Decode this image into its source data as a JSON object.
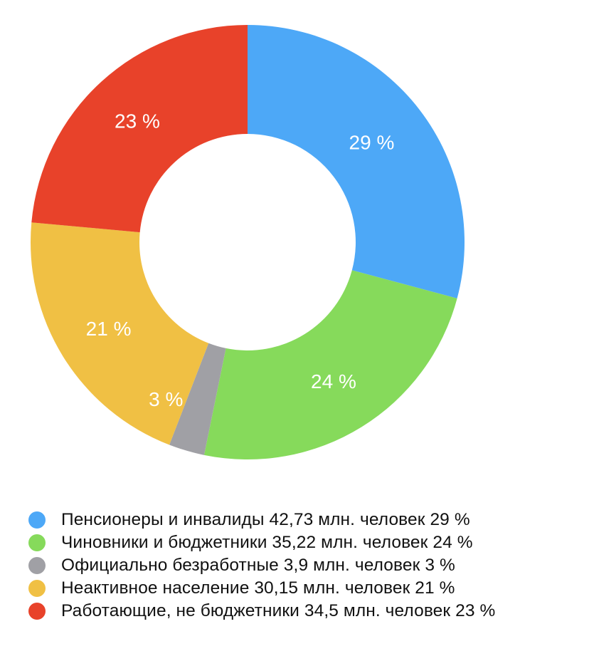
{
  "chart_data": {
    "type": "pie",
    "donut": true,
    "title": "",
    "start_angle_deg": 0,
    "direction": "clockwise",
    "slices": [
      {
        "label": "Пенсионеры и инвалиды",
        "value": 42.73,
        "percent_label": "29 %",
        "legend": "Пенсионеры и инвалиды 42,73 млн. человек 29 %",
        "color": "#4DA8F7"
      },
      {
        "label": "Чиновники и бюджетники",
        "value": 35.22,
        "percent_label": "24 %",
        "legend": "Чиновники и бюджетники 35,22 млн. человек 24 %",
        "color": "#86DA5B"
      },
      {
        "label": "Официально безработные",
        "value": 3.9,
        "percent_label": "3 %",
        "legend": "Официально безработные 3,9 млн. человек 3 %",
        "color": "#A0A0A5"
      },
      {
        "label": "Неактивное население",
        "value": 30.15,
        "percent_label": "21 %",
        "legend": "Неактивное население 30,15 млн. человек 21 %",
        "color": "#F0C044"
      },
      {
        "label": "Работающие, не бюджетники",
        "value": 34.5,
        "percent_label": "23 %",
        "legend": "Работающие, не бюджетники 34,5 млн. человек 23 %",
        "color": "#E8422A"
      }
    ],
    "legend_placement": "bottom-left"
  }
}
